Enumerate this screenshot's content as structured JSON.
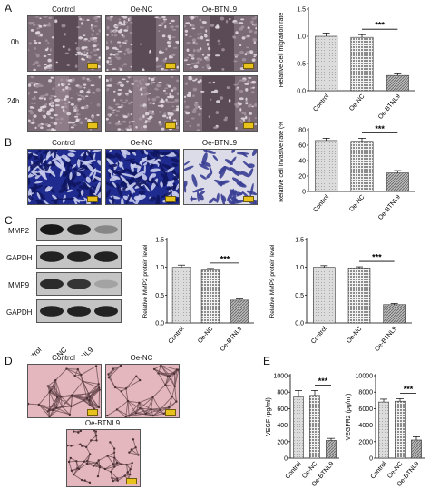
{
  "panel_labels": {
    "a": "A",
    "b": "B",
    "c": "C",
    "d": "D",
    "e": "E"
  },
  "groups": [
    "Control",
    "Oe-NC",
    "Oe-BTNL9"
  ],
  "panelA": {
    "times": [
      "0h",
      "24h"
    ]
  },
  "panelC": {
    "bands": [
      "MMP2",
      "GAPDH",
      "MMP9",
      "GAPDH"
    ]
  },
  "colors": {
    "control_bar": "#dcdcdc",
    "oe_nc_bar": "#8c8c8c",
    "btnl9_bar": "#6e6e6e",
    "wound_bg": "#7a6a76",
    "transwell_bg": "#1f2b8f",
    "tube_bg": "#e3b7bd"
  },
  "chart_data": [
    {
      "id": "chart-a",
      "type": "bar",
      "categories": [
        "Control",
        "Oe-NC",
        "Oe-BTNL9"
      ],
      "values": [
        1.0,
        0.98,
        0.28
      ],
      "errors": [
        0.06,
        0.05,
        0.03
      ],
      "ylabel": "Relative cell migration rate",
      "ylim": [
        0,
        1.5
      ],
      "yticks": [
        "0.0",
        "0.5",
        "1.0",
        "1.5"
      ],
      "significance": "***"
    },
    {
      "id": "chart-b",
      "type": "bar",
      "categories": [
        "Control",
        "Oe-NC",
        "Oe-BTNL9"
      ],
      "values": [
        66,
        65,
        24
      ],
      "errors": [
        3,
        4,
        3
      ],
      "ylabel": "Relative cell invasive rate (%)",
      "ylim": [
        0,
        80
      ],
      "yticks": [
        "0",
        "20",
        "40",
        "60",
        "80"
      ],
      "significance": "***"
    },
    {
      "id": "chart-c1",
      "type": "bar",
      "categories": [
        "Control",
        "Oe-NC",
        "Oe-BTNL9"
      ],
      "values": [
        1.0,
        0.95,
        0.41
      ],
      "errors": [
        0.04,
        0.03,
        0.02
      ],
      "ylabel": "Relative MMP2 protein level",
      "ylim": [
        0,
        1.5
      ],
      "yticks": [
        "0.0",
        "0.5",
        "1.0",
        "1.5"
      ],
      "significance": "***"
    },
    {
      "id": "chart-c2",
      "type": "bar",
      "categories": [
        "Control",
        "Oe-NC",
        "Oe-BTNL9"
      ],
      "values": [
        1.0,
        0.99,
        0.33
      ],
      "errors": [
        0.03,
        0.02,
        0.02
      ],
      "ylabel": "Relative MMP9 protein level",
      "ylim": [
        0,
        1.5
      ],
      "yticks": [
        "0.0",
        "0.5",
        "1.0",
        "1.5"
      ],
      "significance": "***"
    },
    {
      "id": "chart-e1",
      "type": "bar",
      "categories": [
        "Control",
        "Oe-NC",
        "Oe-BTNL9"
      ],
      "values": [
        740,
        760,
        215
      ],
      "errors": [
        80,
        60,
        25
      ],
      "ylabel": "VEGF (pg/ml)",
      "ylim": [
        0,
        1000
      ],
      "yticks": [
        "0",
        "200",
        "400",
        "600",
        "800",
        "1000"
      ],
      "significance": "***"
    },
    {
      "id": "chart-e2",
      "type": "bar",
      "categories": [
        "Control",
        "Oe-NC",
        "Oe-BTNL9"
      ],
      "values": [
        6800,
        6900,
        2200
      ],
      "errors": [
        350,
        300,
        400
      ],
      "ylabel": "VEGFR2 (pg/ml)",
      "ylim": [
        0,
        10000
      ],
      "yticks": [
        "0",
        "2000",
        "4000",
        "6000",
        "8000",
        "10000"
      ],
      "significance": "***"
    }
  ]
}
